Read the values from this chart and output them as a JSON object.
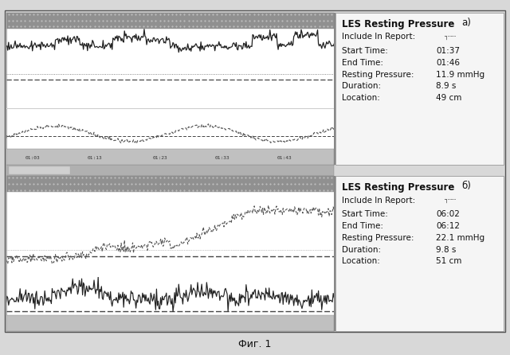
{
  "title": "Фиг. 1",
  "panel_a_label": "LES Resting Pressure",
  "panel_a_sublabel": "a)",
  "panel_a_include": "Include In Report:",
  "panel_a_checkbox": "[  ]",
  "panel_a_start": "Start Time:",
  "panel_a_start_val": "01:37",
  "panel_a_end": "End Time:",
  "panel_a_end_val": "01:46",
  "panel_a_rp": "Resting Pressure:",
  "panel_a_rp_val": "11.9 mmHg",
  "panel_a_dur": "Duration:",
  "panel_a_dur_val": "8.9 s",
  "panel_a_loc": "Location:",
  "panel_a_loc_val": "49 cm",
  "panel_b_label": "LES Resting Pressure",
  "panel_b_sublabel": "б)",
  "panel_b_include": "Include In Report:",
  "panel_b_checkbox": "[  ]",
  "panel_b_start": "Start Time:",
  "panel_b_start_val": "06:02",
  "panel_b_end": "End Time:",
  "panel_b_end_val": "06:12",
  "panel_b_rp": "Resting Pressure:",
  "panel_b_rp_val": "22.1 mmHg",
  "panel_b_dur": "Duration:",
  "panel_b_dur_val": "9.8 s",
  "panel_b_loc": "Location:",
  "panel_b_loc_val": "51 cm",
  "outer_bg": "#d8d8d8",
  "chart_bg": "#ffffff",
  "info_bg": "#f0f0f0",
  "header_bg": "#aaaaaa",
  "timeline_bg": "#c8c8c8",
  "separator_bg": "#b8b8b8",
  "line_color": "#222222",
  "dash_color": "#444444",
  "text_color": "#111111"
}
